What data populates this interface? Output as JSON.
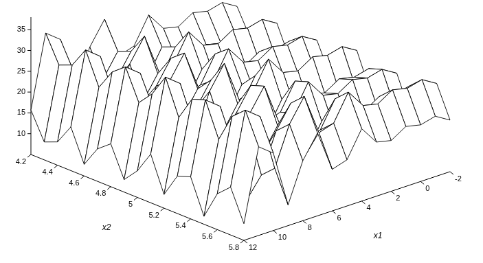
{
  "chart_data": {
    "type": "surface",
    "xlabel": "x1",
    "ylabel": "x2",
    "x": [
      -2,
      -1,
      0,
      1,
      2,
      3,
      4,
      5,
      6,
      7,
      8,
      9,
      10,
      11,
      12
    ],
    "y": [
      4.2,
      4.3,
      4.4,
      4.5,
      4.6,
      4.7,
      4.8,
      4.9,
      5.0,
      5.1,
      5.2,
      5.3,
      5.4,
      5.5,
      5.6,
      5.7,
      5.8
    ],
    "z": [
      [
        24.1,
        17.7,
        19.0,
        23.9,
        16.2,
        21.2,
        23.7,
        16.4,
        19.8,
        25.1,
        16.7,
        22.4,
        23.5,
        15.3,
        22.0,
        24.9,
        17.4
      ],
      [
        26.2,
        19.8,
        21.1,
        26.0,
        18.3,
        23.3,
        25.8,
        18.5,
        21.9,
        27.2,
        18.8,
        24.5,
        25.6,
        17.4,
        24.1,
        27.0,
        19.5
      ],
      [
        25.3,
        18.9,
        20.2,
        25.1,
        17.4,
        22.4,
        24.9,
        17.6,
        21.0,
        26.3,
        17.9,
        23.6,
        24.7,
        16.5,
        23.2,
        26.1,
        18.6
      ],
      [
        26.1,
        19.7,
        21.0,
        25.9,
        18.2,
        23.2,
        25.7,
        18.4,
        21.8,
        27.1,
        18.7,
        24.4,
        25.5,
        17.3,
        24.0,
        26.9,
        19.4
      ],
      [
        23.9,
        17.5,
        18.8,
        23.7,
        16.0,
        21.0,
        23.5,
        16.2,
        19.6,
        24.9,
        16.5,
        22.2,
        23.3,
        15.1,
        21.8,
        24.7,
        17.2
      ],
      [
        24.7,
        18.3,
        19.6,
        24.5,
        16.8,
        21.8,
        24.3,
        17.0,
        20.4,
        25.7,
        17.3,
        23.0,
        24.1,
        15.9,
        22.6,
        25.5,
        18.0
      ],
      [
        29.1,
        22.7,
        24.0,
        28.9,
        21.2,
        26.2,
        28.7,
        21.4,
        24.8,
        30.1,
        21.7,
        27.4,
        28.5,
        20.3,
        27.0,
        29.9,
        22.4
      ],
      [
        22.8,
        16.4,
        17.7,
        22.6,
        14.9,
        19.9,
        22.4,
        15.1,
        18.5,
        23.8,
        15.4,
        21.1,
        22.2,
        14.0,
        20.7,
        23.6,
        16.1
      ],
      [
        21.7,
        15.3,
        16.6,
        21.5,
        13.8,
        18.8,
        21.3,
        14.0,
        17.4,
        22.7,
        14.3,
        20.0,
        21.1,
        12.9,
        19.6,
        22.5,
        15.0
      ],
      [
        31.6,
        25.2,
        26.5,
        31.4,
        23.7,
        28.7,
        31.2,
        23.9,
        27.3,
        32.6,
        24.2,
        29.9,
        31.0,
        22.8,
        29.5,
        32.4,
        24.9
      ],
      [
        26.1,
        19.7,
        21.0,
        25.9,
        18.2,
        23.2,
        25.7,
        18.4,
        21.8,
        27.1,
        18.7,
        24.4,
        25.5,
        17.3,
        24.0,
        26.9,
        19.4
      ],
      [
        16.7,
        10.3,
        11.6,
        16.5,
        8.8,
        13.8,
        16.3,
        9.0,
        12.4,
        17.7,
        9.3,
        15.0,
        16.1,
        7.9,
        14.6,
        17.5,
        10.0
      ],
      [
        30.3,
        23.9,
        25.2,
        30.1,
        22.4,
        27.4,
        29.9,
        22.6,
        26.0,
        31.3,
        22.9,
        28.6,
        29.7,
        21.5,
        28.2,
        31.1,
        23.6
      ],
      [
        33.0,
        26.6,
        27.9,
        32.8,
        25.1,
        30.1,
        32.6,
        25.3,
        28.7,
        34.0,
        25.6,
        31.3,
        32.4,
        24.2,
        31.0,
        33.8,
        26.3
      ],
      [
        15.7,
        9.3,
        10.6,
        15.5,
        7.8,
        12.8,
        15.3,
        8.0,
        11.4,
        16.7,
        8.3,
        14.0,
        15.1,
        6.9,
        13.6,
        16.5,
        9.0
      ]
    ],
    "xlim": [
      -2,
      12
    ],
    "xticks": [
      -2,
      0,
      2,
      4,
      6,
      8,
      10,
      12
    ],
    "ylim": [
      4.2,
      5.8
    ],
    "yticks": [
      4.2,
      4.4,
      4.6,
      4.8,
      5,
      5.2,
      5.4,
      5.6,
      5.8
    ],
    "zlim": [
      5,
      38
    ],
    "zticks": [
      10,
      15,
      20,
      25,
      30,
      35
    ]
  }
}
